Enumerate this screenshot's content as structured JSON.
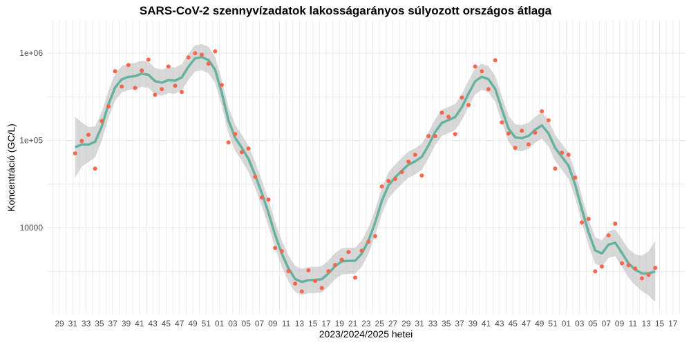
{
  "chart_data": {
    "type": "scatter",
    "title": "SARS-CoV-2 szennyvízadatok lakosságarányos súlyozott országos átlaga",
    "xlabel": "2023/2024/2025 hetei",
    "ylabel": "Koncentráció (GC/L)",
    "y_scale": "log10",
    "ylim": [
      1000,
      2300000
    ],
    "y_ticks": [
      {
        "value": 10000,
        "label": "10000"
      },
      {
        "value": 100000,
        "label": "1e+05"
      },
      {
        "value": 1000000,
        "label": "1e+06"
      }
    ],
    "x_tick_labels": [
      "29",
      "31",
      "33",
      "35",
      "37",
      "39",
      "41",
      "43",
      "45",
      "47",
      "49",
      "51",
      "01",
      "03",
      "05",
      "07",
      "09",
      "11",
      "13",
      "15",
      "17",
      "19",
      "21",
      "23",
      "25",
      "27",
      "29",
      "31",
      "33",
      "35",
      "37",
      "39",
      "41",
      "43",
      "45",
      "47",
      "49",
      "51",
      "01",
      "03",
      "05",
      "07",
      "09",
      "11",
      "13",
      "15",
      "17"
    ],
    "x_range": [
      "2023-W29",
      "2025-W17"
    ],
    "grid": true,
    "legend": "none",
    "colors": {
      "points": "#F8664C",
      "smooth_line": "#66B2A0",
      "confidence_band": "#BEBEBE",
      "grid": "#EBEBEB"
    },
    "smooth": {
      "method": "loess",
      "confidence_band": true
    },
    "points": [
      {
        "x": "2023-W31",
        "y": 71000
      },
      {
        "x": "2023-W32",
        "y": 98600
      },
      {
        "x": "2023-W33",
        "y": 116000
      },
      {
        "x": "2023-W34",
        "y": 47500
      },
      {
        "x": "2023-W35",
        "y": 167000
      },
      {
        "x": "2023-W36",
        "y": 245000
      },
      {
        "x": "2023-W37",
        "y": 620000
      },
      {
        "x": "2023-W38",
        "y": 415000
      },
      {
        "x": "2023-W39",
        "y": 730000
      },
      {
        "x": "2023-W40",
        "y": 400000
      },
      {
        "x": "2023-W41",
        "y": 631000
      },
      {
        "x": "2023-W42",
        "y": 844000
      },
      {
        "x": "2023-W43",
        "y": 333000
      },
      {
        "x": "2023-W44",
        "y": 386000
      },
      {
        "x": "2023-W45",
        "y": 703000
      },
      {
        "x": "2023-W46",
        "y": 423000
      },
      {
        "x": "2023-W47",
        "y": 359000
      },
      {
        "x": "2023-W48",
        "y": 892000
      },
      {
        "x": "2023-W49",
        "y": 995000
      },
      {
        "x": "2023-W50",
        "y": 959000
      },
      {
        "x": "2023-W51",
        "y": 757000
      },
      {
        "x": "2023-W52",
        "y": 1050000
      },
      {
        "x": "2024-W01",
        "y": 431000
      },
      {
        "x": "2024-W02",
        "y": 95000
      },
      {
        "x": "2024-W03",
        "y": 118000
      },
      {
        "x": "2024-W04",
        "y": 73600
      },
      {
        "x": "2024-W05",
        "y": 80700
      },
      {
        "x": "2024-W06",
        "y": 38300
      },
      {
        "x": "2024-W07",
        "y": 22200
      },
      {
        "x": "2024-W08",
        "y": 21000
      },
      {
        "x": "2024-W09",
        "y": 5870
      },
      {
        "x": "2024-W10",
        "y": 5380
      },
      {
        "x": "2024-W11",
        "y": 3180
      },
      {
        "x": "2024-W12",
        "y": 2290
      },
      {
        "x": "2024-W13",
        "y": 1860
      },
      {
        "x": "2024-W14",
        "y": 3240
      },
      {
        "x": "2024-W15",
        "y": 2460
      },
      {
        "x": "2024-W16",
        "y": 2040
      },
      {
        "x": "2024-W17",
        "y": 3180
      },
      {
        "x": "2024-W18",
        "y": 3740
      },
      {
        "x": "2024-W19",
        "y": 4300
      },
      {
        "x": "2024-W20",
        "y": 5260
      },
      {
        "x": "2024-W21",
        "y": 2680
      },
      {
        "x": "2024-W22",
        "y": 5460
      },
      {
        "x": "2024-W23",
        "y": 6920
      },
      {
        "x": "2024-W24",
        "y": 8000
      },
      {
        "x": "2024-W25",
        "y": 29700
      },
      {
        "x": "2024-W26",
        "y": 34300
      },
      {
        "x": "2024-W27",
        "y": 36200
      },
      {
        "x": "2024-W28",
        "y": 43500
      },
      {
        "x": "2024-W29",
        "y": 57100
      },
      {
        "x": "2024-W30",
        "y": 68500
      },
      {
        "x": "2024-W31",
        "y": 39600
      },
      {
        "x": "2024-W32",
        "y": 112000
      },
      {
        "x": "2024-W33",
        "y": 112000
      },
      {
        "x": "2024-W34",
        "y": 208000
      },
      {
        "x": "2024-W35",
        "y": 186000
      },
      {
        "x": "2024-W36",
        "y": 118000
      },
      {
        "x": "2024-W37",
        "y": 310000
      },
      {
        "x": "2024-W38",
        "y": 254000
      },
      {
        "x": "2024-W39",
        "y": 703000
      },
      {
        "x": "2024-W40",
        "y": 620000
      },
      {
        "x": "2024-W41",
        "y": 386000
      },
      {
        "x": "2024-W42",
        "y": 830000
      },
      {
        "x": "2024-W43",
        "y": 161000
      },
      {
        "x": "2024-W44",
        "y": 120000
      },
      {
        "x": "2024-W45",
        "y": 82200
      },
      {
        "x": "2024-W46",
        "y": 129000
      },
      {
        "x": "2024-W47",
        "y": 90000
      },
      {
        "x": "2024-W48",
        "y": 123000
      },
      {
        "x": "2024-W49",
        "y": 216000
      },
      {
        "x": "2024-W50",
        "y": 170000
      },
      {
        "x": "2024-W51",
        "y": 47500
      },
      {
        "x": "2024-W52",
        "y": 72300
      },
      {
        "x": "2025-W01",
        "y": 68500
      },
      {
        "x": "2025-W02",
        "y": 37600
      },
      {
        "x": "2025-W03",
        "y": 11500
      },
      {
        "x": "2025-W04",
        "y": 12600
      },
      {
        "x": "2025-W05",
        "y": 3160
      },
      {
        "x": "2025-W06",
        "y": 3590
      },
      {
        "x": "2025-W07",
        "y": 8150
      },
      {
        "x": "2025-W08",
        "y": 11100
      },
      {
        "x": "2025-W09",
        "y": 3920
      },
      {
        "x": "2025-W10",
        "y": 3720
      },
      {
        "x": "2025-W11",
        "y": 3400
      },
      {
        "x": "2025-W12",
        "y": 2630
      },
      {
        "x": "2025-W13",
        "y": 2880
      },
      {
        "x": "2025-W14",
        "y": 3460
      }
    ]
  }
}
